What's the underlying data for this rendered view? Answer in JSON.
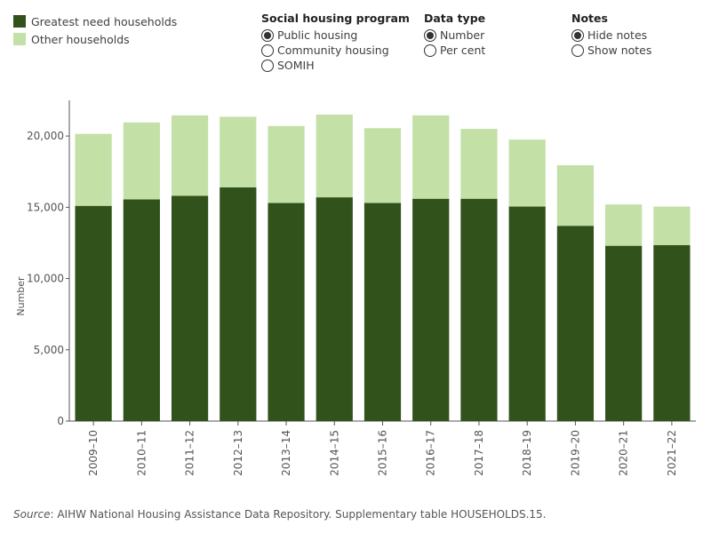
{
  "legend": {
    "items": [
      {
        "label": "Greatest need households",
        "color": "#31521b"
      },
      {
        "label": "Other households",
        "color": "#c3e0a6"
      }
    ]
  },
  "controls": {
    "program": {
      "title": "Social housing program",
      "options": [
        {
          "label": "Public housing",
          "selected": true
        },
        {
          "label": "Community housing",
          "selected": false
        },
        {
          "label": "SOMIH",
          "selected": false
        }
      ]
    },
    "data_type": {
      "title": "Data type",
      "options": [
        {
          "label": "Number",
          "selected": true
        },
        {
          "label": "Per cent",
          "selected": false
        }
      ]
    },
    "notes": {
      "title": "Notes",
      "options": [
        {
          "label": "Hide notes",
          "selected": true
        },
        {
          "label": "Show notes",
          "selected": false
        }
      ]
    }
  },
  "chart_data": {
    "type": "bar",
    "stacked": true,
    "categories": [
      "2009–10",
      "2010–11",
      "2011–12",
      "2012–13",
      "2013–14",
      "2014–15",
      "2015–16",
      "2016–17",
      "2017–18",
      "2018–19",
      "2019–20",
      "2020–21",
      "2021–22"
    ],
    "series": [
      {
        "name": "Greatest need households",
        "color": "#31521b",
        "values": [
          15100,
          15550,
          15800,
          16400,
          15300,
          15700,
          15300,
          15600,
          15600,
          15050,
          13700,
          12300,
          12350
        ]
      },
      {
        "name": "Other households",
        "color": "#c3e0a6",
        "values": [
          5050,
          5400,
          5650,
          4950,
          5400,
          5800,
          5250,
          5850,
          4900,
          4700,
          4250,
          2900,
          2700
        ]
      }
    ],
    "ylabel": "Number",
    "xlabel": "",
    "ylim": [
      0,
      22500
    ],
    "yticks": [
      0,
      5000,
      10000,
      15000,
      20000
    ],
    "ytick_labels": [
      "0",
      "5,000",
      "10,000",
      "15,000",
      "20,000"
    ],
    "grid": false,
    "legend_position": "top-left"
  },
  "source": {
    "label": "Source",
    "text": ": AIHW National Housing Assistance Data Repository. Supplementary table HOUSEHOLDS.15."
  }
}
